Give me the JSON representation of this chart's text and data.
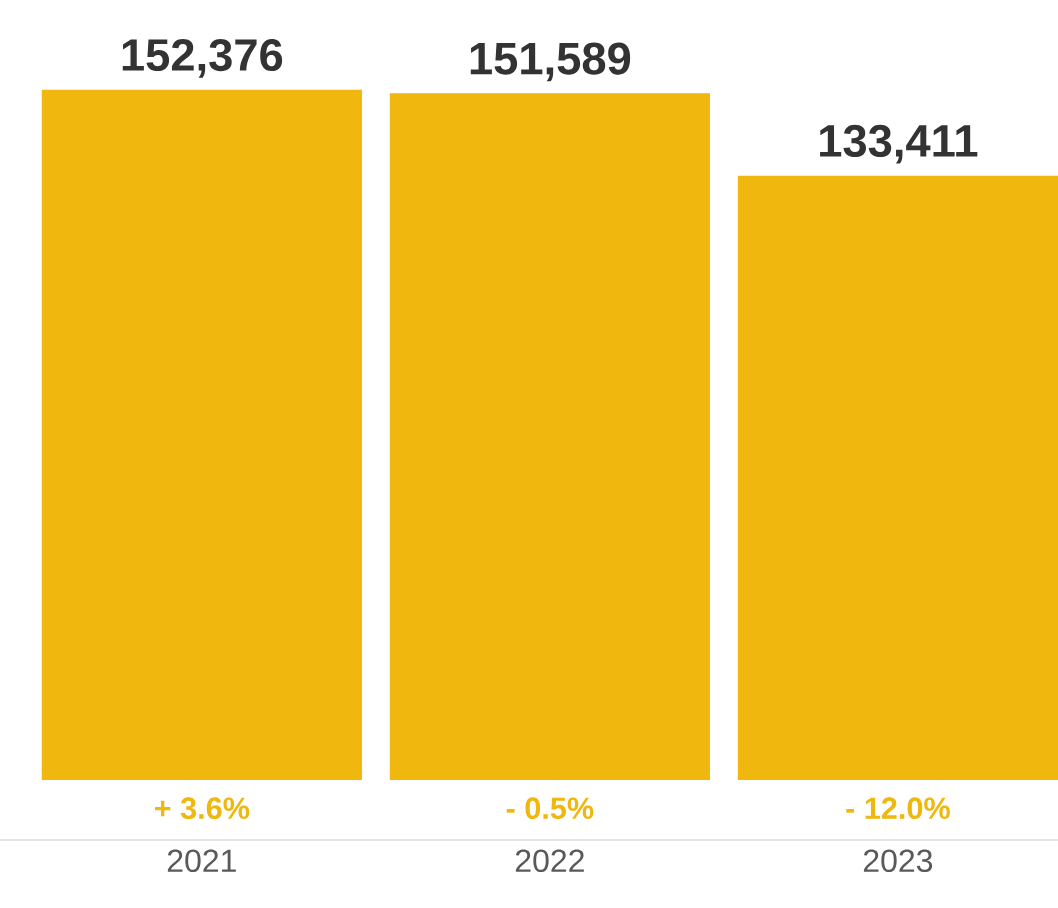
{
  "chart_data": {
    "type": "bar",
    "categories": [
      "2021",
      "2022",
      "2023"
    ],
    "values": [
      152376,
      151589,
      133411
    ],
    "color": "#f0b70f",
    "value_labels": [
      "152,376",
      "151,589",
      "133,411"
    ],
    "annotations": [
      {
        "text": "+ 3.6%",
        "x": "2021",
        "y": 0
      },
      {
        "text": "- 0.5%",
        "x": "2022",
        "y": 0
      },
      {
        "text": "- 12.0%",
        "x": "2023",
        "y": 0
      }
    ]
  }
}
